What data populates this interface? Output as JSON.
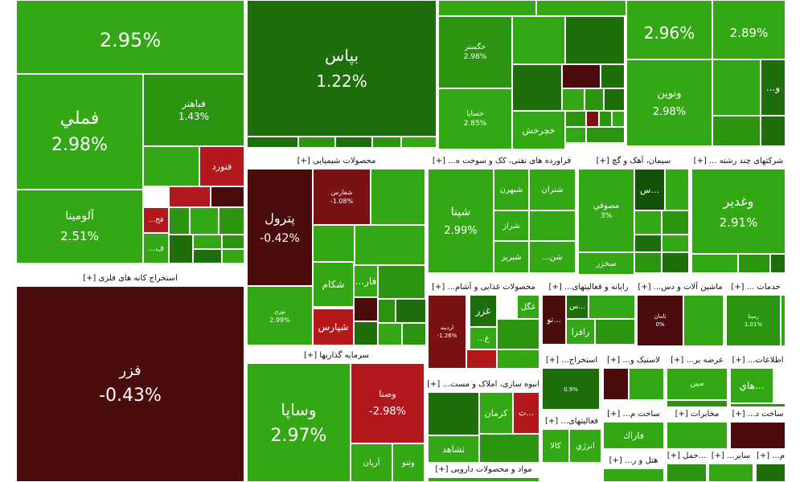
{
  "colors": {
    "strong_green": "#33a814",
    "green": "#2b9410",
    "dark_green": "#1f6e0c",
    "deep_green": "#155209",
    "red": "#b3191c",
    "dark_red": "#7a1212",
    "maroon": "#4a0c0c",
    "header_bg": "#ffffff"
  },
  "sectors": [
    {
      "name": "استخراج کانه های فلزی [+]"
    },
    {
      "name": "محصولات شیمیایی [+]"
    },
    {
      "name": "فراورده های نفتی، کک و سوخت ه... [+]"
    },
    {
      "name": "سیمان، آهک و گچ [+]"
    },
    {
      "name": "شرکتهای چند رشته ... [+]"
    },
    {
      "name": "سرمایه گذاریها [+]"
    },
    {
      "name": "محصولات غذایی و آشام... [+]"
    },
    {
      "name": "رایانه و فعالیتهای... [+]"
    },
    {
      "name": "ماشین آلات و دس... [+]"
    },
    {
      "name": "خدمات ... [+]"
    },
    {
      "name": "انبوه سازی، املاک و مست... [+]"
    },
    {
      "name": "استخراج... [+]"
    },
    {
      "name": "لاستیک و... [+]"
    },
    {
      "name": "عرضه بر... [+]"
    },
    {
      "name": "اطلاعات... [+]"
    },
    {
      "name": "ساخت م... [+]"
    },
    {
      "name": "مخابرات [+]"
    },
    {
      "name": "ساخت د... [+]"
    },
    {
      "name": "فعالیتهای... [+]"
    },
    {
      "name": "هتل و ر... [+]"
    },
    {
      "name": "...حمل [+]"
    },
    {
      "name": "سایر... [+]"
    },
    {
      "name": "م... [+]"
    },
    {
      "name": "مواد و محصولات دارویی [+]"
    }
  ],
  "chart_data": {
    "type": "treemap",
    "tiles": [
      {
        "name": "",
        "change": "2.95%",
        "color": "strong_green"
      },
      {
        "name": "فملي",
        "change": "2.98%",
        "color": "strong_green"
      },
      {
        "name": "آلومينا",
        "change": "2.51%",
        "color": "strong_green"
      },
      {
        "name": "فباهنر",
        "change": "1.43%",
        "color": "green"
      },
      {
        "name": "فنورد",
        "change": "",
        "color": "red"
      },
      {
        "name": "فخ...",
        "change": "",
        "color": "red"
      },
      {
        "name": "ف...",
        "change": "",
        "color": "strong_green"
      },
      {
        "name": "فزر",
        "change": "-0.43%",
        "color": "maroon"
      },
      {
        "name": "بپاس",
        "change": "1.22%",
        "color": "dark_green"
      },
      {
        "name": "خگستر",
        "change": "2.98%",
        "color": "green"
      },
      {
        "name": "خساپا",
        "change": "2.85%",
        "color": "strong_green"
      },
      {
        "name": "خچرخش",
        "change": "",
        "color": "strong_green"
      },
      {
        "name": "",
        "change": "2.96%",
        "color": "strong_green"
      },
      {
        "name": "",
        "change": "2.89%",
        "color": "strong_green"
      },
      {
        "name": "ونوين",
        "change": "2.98%",
        "color": "strong_green"
      },
      {
        "name": "و...",
        "change": "",
        "color": "dark_green"
      },
      {
        "name": "پترول",
        "change": "-0.42%",
        "color": "maroon"
      },
      {
        "name": "شفارس",
        "change": "-1.08%",
        "color": "dark_red"
      },
      {
        "name": "فار...",
        "change": "",
        "color": "strong_green"
      },
      {
        "name": "شكام",
        "change": "",
        "color": "strong_green"
      },
      {
        "name": "شپارس",
        "change": "",
        "color": "red"
      },
      {
        "name": "نوري",
        "change": "2.99%",
        "color": "strong_green"
      },
      {
        "name": "شپنا",
        "change": "2.99%",
        "color": "strong_green"
      },
      {
        "name": "شبهرن",
        "change": "",
        "color": "strong_green"
      },
      {
        "name": "شتران",
        "change": "",
        "color": "strong_green"
      },
      {
        "name": "شراز",
        "change": "",
        "color": "strong_green"
      },
      {
        "name": "شبريز",
        "change": "",
        "color": "strong_green"
      },
      {
        "name": "شن...",
        "change": "",
        "color": "strong_green"
      },
      {
        "name": "مصوفي",
        "change": "3%",
        "color": "strong_green"
      },
      {
        "name": "سخزر",
        "change": "",
        "color": "strong_green"
      },
      {
        "name": "...س",
        "change": "",
        "color": "deep_green"
      },
      {
        "name": "وغدير",
        "change": "2.91%",
        "color": "strong_green"
      },
      {
        "name": "وساپا",
        "change": "2.97%",
        "color": "strong_green"
      },
      {
        "name": "وصنا",
        "change": "-2.98%",
        "color": "red"
      },
      {
        "name": "آريان",
        "change": "",
        "color": "strong_green"
      },
      {
        "name": "وتنو",
        "change": "",
        "color": "strong_green"
      },
      {
        "name": "غگل",
        "change": "",
        "color": "strong_green"
      },
      {
        "name": "غزر",
        "change": "",
        "color": "dark_green"
      },
      {
        "name": "غ...",
        "change": "",
        "color": "strong_green"
      },
      {
        "name": "اردينه",
        "change": "-1.26%",
        "color": "dark_red"
      },
      {
        "name": "...تو",
        "change": "",
        "color": "maroon"
      },
      {
        "name": "...س",
        "change": "",
        "color": "dark_green"
      },
      {
        "name": "رافزا",
        "change": "",
        "color": "strong_green"
      },
      {
        "name": "ثامان",
        "change": "0%",
        "color": "maroon"
      },
      {
        "name": "رمپنا",
        "change": "1.01%",
        "color": "green"
      },
      {
        "name": "كرمان",
        "change": "",
        "color": "strong_green"
      },
      {
        "name": "ثشاهد",
        "change": "",
        "color": "strong_green"
      },
      {
        "name": "...ث",
        "change": "",
        "color": "red"
      },
      {
        "name": "",
        "change": "0.9%",
        "color": "dark_green"
      },
      {
        "name": "كالا",
        "change": "",
        "color": "strong_green"
      },
      {
        "name": "انرژي",
        "change": "",
        "color": "strong_green"
      },
      {
        "name": "مبين",
        "change": "",
        "color": "strong_green"
      },
      {
        "name": "...هاي",
        "change": "",
        "color": "strong_green"
      },
      {
        "name": "فاراك",
        "change": "",
        "color": "strong_green"
      }
    ]
  }
}
